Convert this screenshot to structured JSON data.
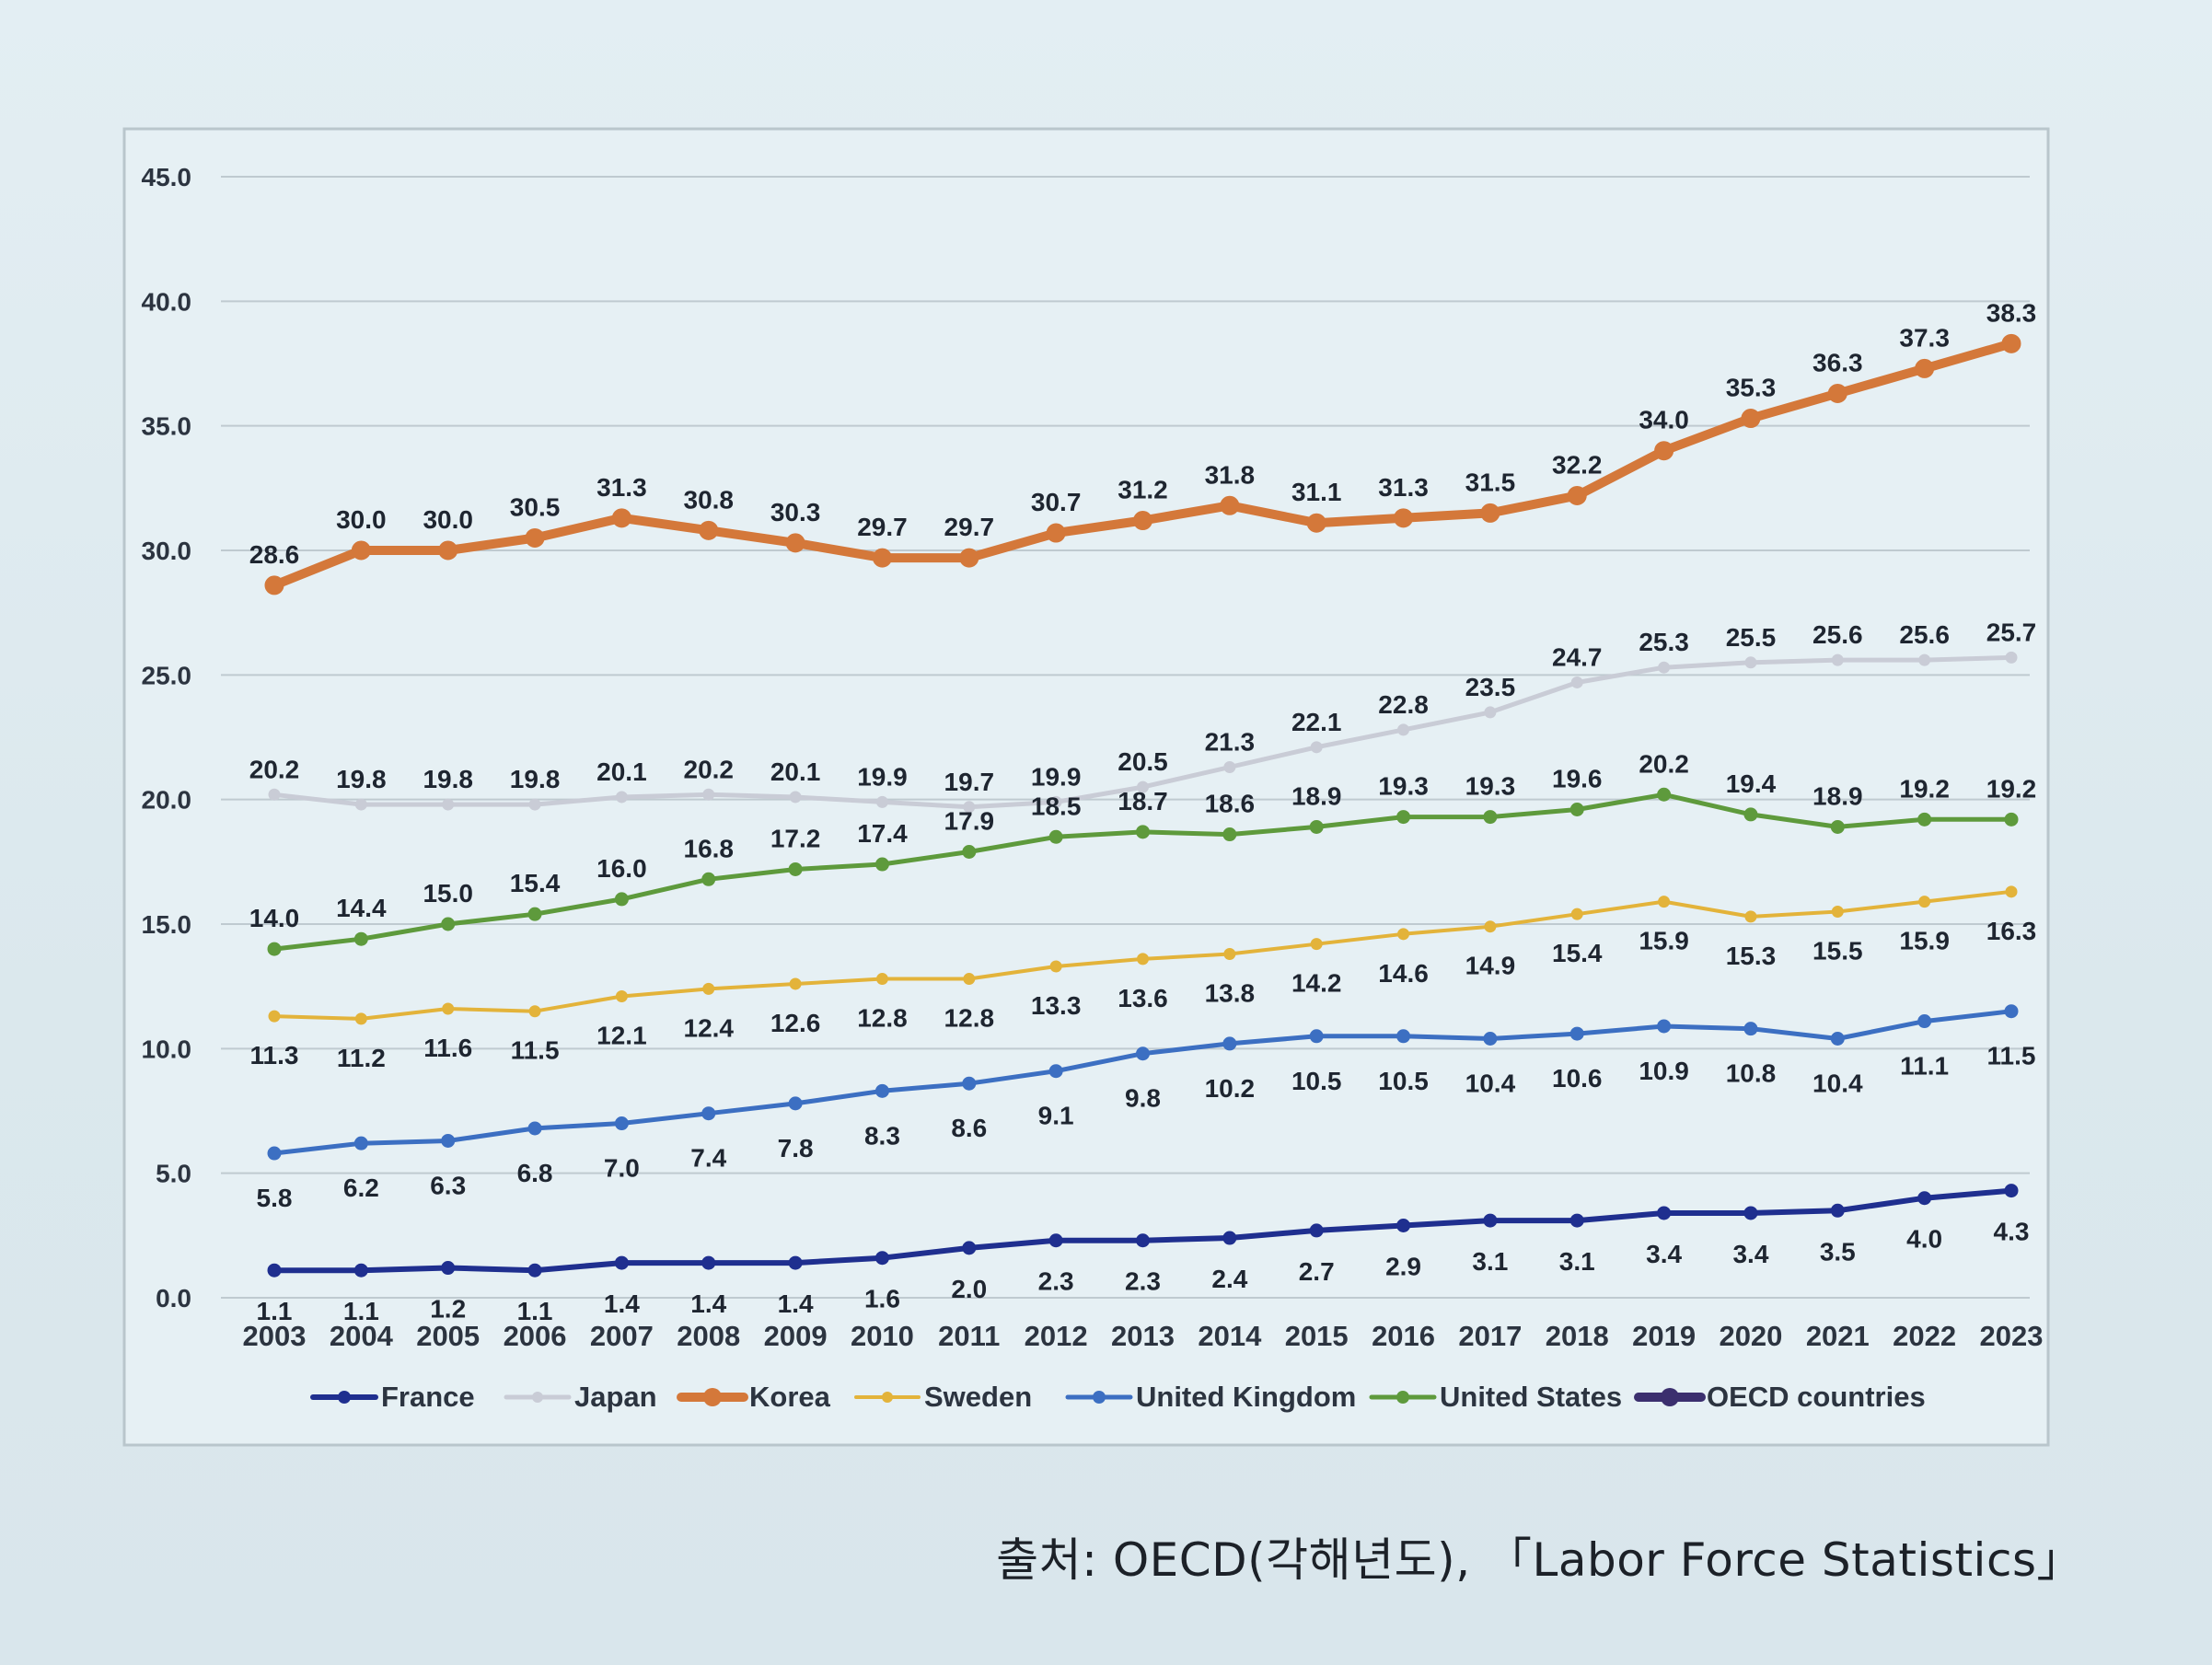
{
  "chart_data": {
    "type": "line",
    "title": "",
    "xlabel": "",
    "ylabel": "",
    "ylim": [
      0,
      45
    ],
    "yticks": [
      "0.0",
      "5.0",
      "10.0",
      "15.0",
      "20.0",
      "25.0",
      "30.0",
      "35.0",
      "40.0",
      "45.0"
    ],
    "grid": true,
    "legend_position": "bottom",
    "categories": [
      "2003",
      "2004",
      "2005",
      "2006",
      "2007",
      "2008",
      "2009",
      "2010",
      "2011",
      "2012",
      "2013",
      "2014",
      "2015",
      "2016",
      "2017",
      "2018",
      "2019",
      "2020",
      "2021",
      "2022",
      "2023"
    ],
    "series": [
      {
        "name": "France",
        "color": "#1f2f8f",
        "values": [
          1.1,
          1.1,
          1.2,
          1.1,
          1.4,
          1.4,
          1.4,
          1.6,
          2.0,
          2.3,
          2.3,
          2.4,
          2.7,
          2.9,
          3.1,
          3.1,
          3.4,
          3.4,
          3.5,
          4.0,
          4.3
        ],
        "labels": [
          "1.1",
          "1.1",
          "1.2",
          "1.1",
          "1.4",
          "1.4",
          "1.4",
          "1.6",
          "2.0",
          "2.3",
          "2.3",
          "2.4",
          "2.7",
          "2.9",
          "3.1",
          "3.1",
          "3.4",
          "3.4",
          "3.5",
          "4.0",
          "4.3"
        ]
      },
      {
        "name": "Japan",
        "color": "#c9ccd6",
        "values": [
          20.2,
          19.8,
          19.8,
          19.8,
          20.1,
          20.2,
          20.1,
          19.9,
          19.7,
          19.9,
          20.5,
          21.3,
          22.1,
          22.8,
          23.5,
          24.7,
          25.3,
          25.5,
          25.6,
          25.6,
          25.7
        ],
        "labels": [
          "20.2",
          "19.8",
          "19.8",
          "19.8",
          "20.1",
          "20.2",
          "20.1",
          "19.9",
          "19.7",
          "19.9",
          "20.5",
          "21.3",
          "22.1",
          "22.8",
          "23.5",
          "24.7",
          "25.3",
          "25.5",
          "25.6",
          "25.6",
          "25.7"
        ]
      },
      {
        "name": "Korea",
        "color": "#d4783a",
        "values": [
          28.6,
          30.0,
          30.0,
          30.5,
          31.3,
          30.8,
          30.3,
          29.7,
          29.7,
          30.7,
          31.2,
          31.8,
          31.1,
          31.3,
          31.5,
          32.2,
          34.0,
          35.3,
          36.3,
          37.3,
          38.3
        ],
        "labels": [
          "28.6",
          "30.0",
          "30.0",
          "30.5",
          "31.3",
          "30.8",
          "30.3",
          "29.7",
          "29.7",
          "30.7",
          "31.2",
          "31.8",
          "31.1",
          "31.3",
          "31.5",
          "32.2",
          "34.0",
          "35.3",
          "36.3",
          "37.3",
          "38.3"
        ]
      },
      {
        "name": "Sweden",
        "color": "#e3b33a",
        "values": [
          11.3,
          11.2,
          11.6,
          11.5,
          12.1,
          12.4,
          12.6,
          12.8,
          12.8,
          13.3,
          13.6,
          13.8,
          14.2,
          14.6,
          14.9,
          15.4,
          15.9,
          15.3,
          15.5,
          15.9,
          16.3
        ],
        "labels": [
          "11.3",
          "11.2",
          "11.6",
          "11.5",
          "12.1",
          "12.4",
          "12.6",
          "12.8",
          "12.8",
          "13.3",
          "13.6",
          "13.8",
          "14.2",
          "14.6",
          "14.9",
          "15.4",
          "15.9",
          "15.3",
          "15.5",
          "15.9",
          "16.3"
        ]
      },
      {
        "name": "United Kingdom",
        "color": "#3c6fc2",
        "values": [
          5.8,
          6.2,
          6.3,
          6.8,
          7.0,
          7.4,
          7.8,
          8.3,
          8.6,
          9.1,
          9.8,
          10.2,
          10.5,
          10.5,
          10.4,
          10.6,
          10.9,
          10.8,
          10.4,
          11.1,
          11.5
        ],
        "labels": [
          "5.8",
          "6.2",
          "6.3",
          "6.8",
          "7.0",
          "7.4",
          "7.8",
          "8.3",
          "8.6",
          "9.1",
          "9.8",
          "10.2",
          "10.5",
          "10.5",
          "10.4",
          "10.6",
          "10.9",
          "10.8",
          "10.4",
          "11.1",
          "11.5"
        ]
      },
      {
        "name": "United States",
        "color": "#5e9a3c",
        "values": [
          14.0,
          14.4,
          15.0,
          15.4,
          16.0,
          16.8,
          17.2,
          17.4,
          17.9,
          18.5,
          18.7,
          18.6,
          18.9,
          19.3,
          19.3,
          19.6,
          20.2,
          19.4,
          18.9,
          19.2,
          19.2
        ],
        "labels": [
          "14.0",
          "14.4",
          "15.0",
          "15.4",
          "16.0",
          "16.8",
          "17.2",
          "17.4",
          "17.9",
          "18.5",
          "18.7",
          "18.6",
          "18.9",
          "19.3",
          "19.3",
          "19.6",
          "20.2",
          "19.4",
          "18.9",
          "19.2",
          "19.2"
        ]
      },
      {
        "name": "OECD countries",
        "color": "#3b2f6e",
        "values": [
          null,
          null,
          null,
          null,
          null,
          null,
          null,
          null,
          null,
          null,
          null,
          null,
          null,
          null,
          null,
          null,
          null,
          null,
          null,
          null,
          null
        ],
        "labels": []
      }
    ]
  },
  "source_note": "출처: OECD(각해년도), 「Labor Force Statistics」"
}
